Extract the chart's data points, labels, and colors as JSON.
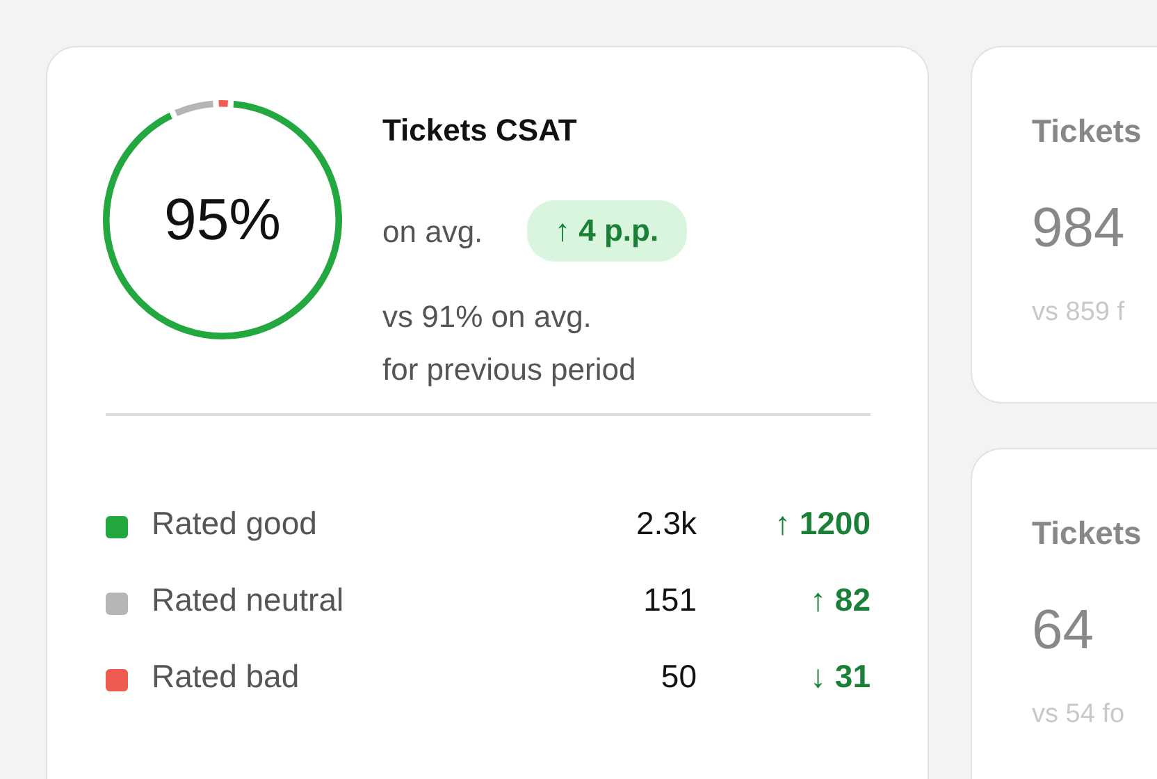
{
  "chart_data": [
    {
      "type": "donut",
      "title": "Tickets CSAT",
      "categories": [
        "Rated good",
        "Rated neutral",
        "Rated bad"
      ],
      "values": [
        2300,
        151,
        50
      ],
      "value_labels": [
        "2.3k",
        "151",
        "50"
      ],
      "colors": [
        "#22a83f",
        "#b5b5b5",
        "#ef5b53"
      ],
      "legend": "bottom",
      "annotations": [
        "95%",
        "on avg.",
        "↑ 4 p.p.",
        "vs 91% on avg.",
        "for previous period",
        "↑ 1200",
        "↑ 82",
        "↓ 31"
      ]
    },
    {
      "type": "other",
      "title": "Tickets",
      "annotations": [
        "984",
        "vs 859 f"
      ]
    },
    {
      "type": "other",
      "title": "Tickets",
      "annotations": [
        "64",
        "vs 54 fo"
      ]
    }
  ]
}
